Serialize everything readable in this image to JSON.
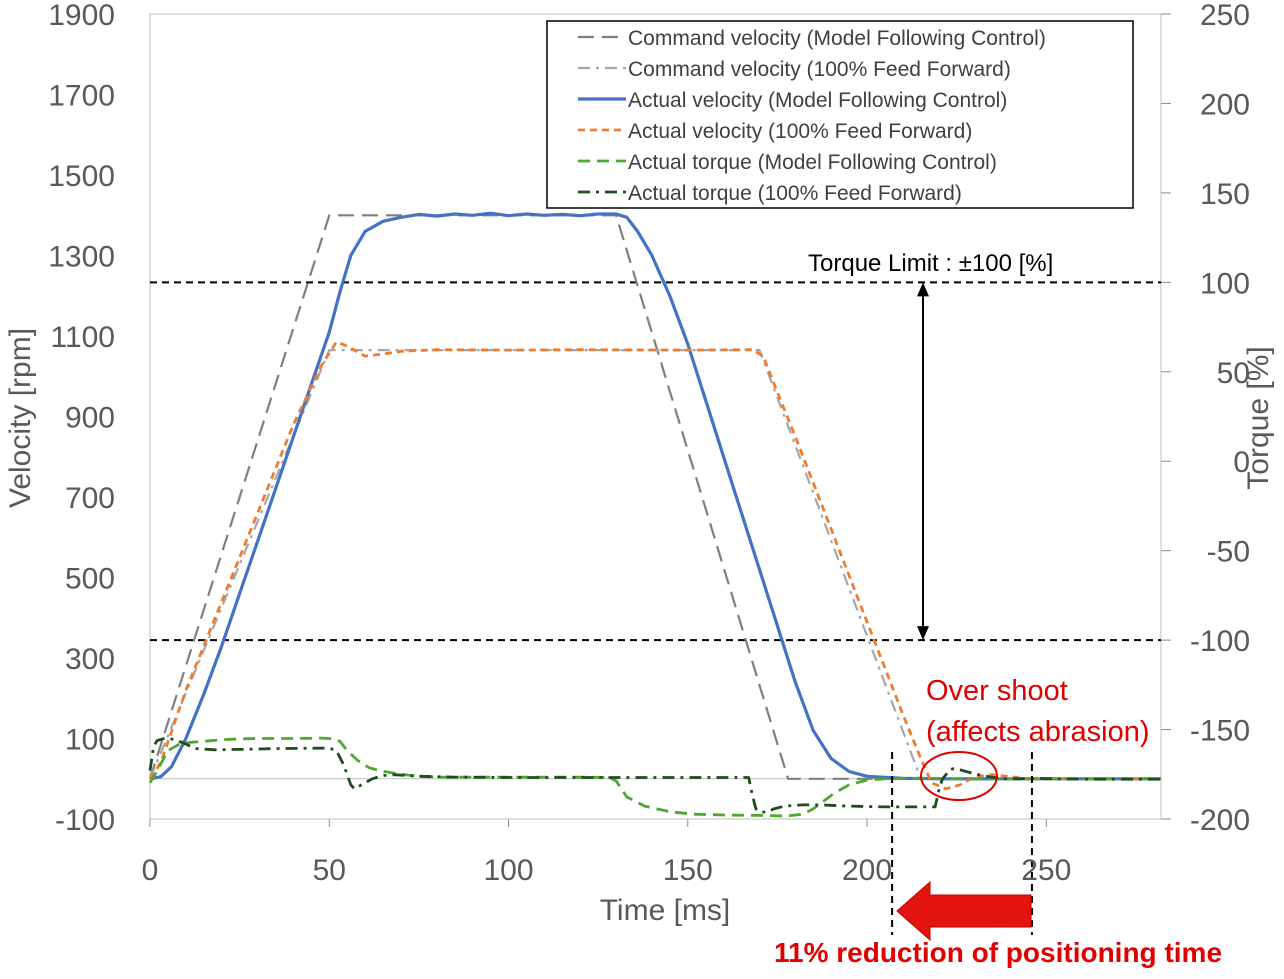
{
  "chart_data": {
    "type": "line",
    "x_axis": {
      "label": "Time [ms]",
      "lim": [
        0,
        282
      ],
      "ticks": [
        0,
        50,
        100,
        150,
        200,
        250
      ]
    },
    "y_axis_left": {
      "label": "Velocity [rpm]",
      "lim": [
        -100,
        1900
      ],
      "ticks": [
        -100,
        100,
        300,
        500,
        700,
        900,
        1100,
        1300,
        1500,
        1700,
        1900
      ]
    },
    "y_axis_right": {
      "label": "Torque [%]",
      "lim": [
        -200,
        250
      ],
      "ticks": [
        -200,
        -150,
        -100,
        -50,
        0,
        50,
        100,
        150,
        200,
        250
      ]
    },
    "legend_position": "top-right",
    "series": [
      {
        "name": "Command velocity (Model Following Control)",
        "axis": "left",
        "color": "#7f7f7f",
        "style": "longdash",
        "width": 2.2,
        "points": [
          [
            0,
            0
          ],
          [
            50,
            1400
          ],
          [
            130,
            1400
          ],
          [
            178,
            0
          ],
          [
            282,
            0
          ]
        ]
      },
      {
        "name": "Command velocity (100% Feed Forward)",
        "axis": "left",
        "color": "#a6a6a6",
        "style": "dashdot",
        "width": 2.2,
        "points": [
          [
            0,
            0
          ],
          [
            50,
            1065
          ],
          [
            170,
            1065
          ],
          [
            215,
            0
          ],
          [
            282,
            0
          ]
        ]
      },
      {
        "name": "Actual velocity (Model Following Control)",
        "axis": "left",
        "color": "#4472c4",
        "style": "solid",
        "width": 3.2,
        "points": [
          [
            0,
            0
          ],
          [
            3,
            5
          ],
          [
            6,
            30
          ],
          [
            10,
            100
          ],
          [
            15,
            210
          ],
          [
            20,
            330
          ],
          [
            25,
            460
          ],
          [
            30,
            590
          ],
          [
            35,
            720
          ],
          [
            40,
            850
          ],
          [
            45,
            980
          ],
          [
            50,
            1110
          ],
          [
            53,
            1210
          ],
          [
            56,
            1300
          ],
          [
            60,
            1360
          ],
          [
            65,
            1385
          ],
          [
            70,
            1395
          ],
          [
            75,
            1402
          ],
          [
            80,
            1398
          ],
          [
            85,
            1403
          ],
          [
            90,
            1400
          ],
          [
            95,
            1405
          ],
          [
            100,
            1399
          ],
          [
            105,
            1403
          ],
          [
            110,
            1400
          ],
          [
            115,
            1402
          ],
          [
            120,
            1399
          ],
          [
            125,
            1403
          ],
          [
            130,
            1403
          ],
          [
            133,
            1395
          ],
          [
            136,
            1360
          ],
          [
            140,
            1300
          ],
          [
            145,
            1200
          ],
          [
            150,
            1080
          ],
          [
            155,
            940
          ],
          [
            160,
            800
          ],
          [
            165,
            660
          ],
          [
            170,
            520
          ],
          [
            175,
            380
          ],
          [
            180,
            240
          ],
          [
            185,
            120
          ],
          [
            190,
            50
          ],
          [
            195,
            18
          ],
          [
            200,
            6
          ],
          [
            210,
            1
          ],
          [
            220,
            0
          ],
          [
            282,
            0
          ]
        ]
      },
      {
        "name": "Actual velocity (100% Feed Forward)",
        "axis": "left",
        "color": "#ed7d31",
        "style": "shortdash",
        "width": 2.8,
        "points": [
          [
            0,
            0
          ],
          [
            3,
            40
          ],
          [
            10,
            220
          ],
          [
            20,
            440
          ],
          [
            30,
            660
          ],
          [
            40,
            880
          ],
          [
            48,
            1030
          ],
          [
            52,
            1085
          ],
          [
            55,
            1075
          ],
          [
            60,
            1050
          ],
          [
            65,
            1055
          ],
          [
            70,
            1062
          ],
          [
            80,
            1066
          ],
          [
            100,
            1065
          ],
          [
            120,
            1066
          ],
          [
            150,
            1065
          ],
          [
            168,
            1066
          ],
          [
            171,
            1050
          ],
          [
            175,
            960
          ],
          [
            180,
            850
          ],
          [
            190,
            620
          ],
          [
            200,
            390
          ],
          [
            210,
            160
          ],
          [
            215,
            50
          ],
          [
            218,
            -10
          ],
          [
            222,
            -25
          ],
          [
            226,
            -15
          ],
          [
            230,
            5
          ],
          [
            235,
            10
          ],
          [
            240,
            5
          ],
          [
            245,
            0
          ],
          [
            282,
            0
          ]
        ]
      },
      {
        "name": "Actual torque (Model Following Control)",
        "axis": "left",
        "color": "#4ea72e",
        "style": "dash",
        "width": 2.8,
        "points": [
          [
            0,
            -10
          ],
          [
            2,
            20
          ],
          [
            5,
            70
          ],
          [
            8,
            85
          ],
          [
            11,
            90
          ],
          [
            15,
            93
          ],
          [
            20,
            97
          ],
          [
            25,
            99
          ],
          [
            30,
            100
          ],
          [
            40,
            100
          ],
          [
            48,
            101
          ],
          [
            51,
            99
          ],
          [
            53,
            93
          ],
          [
            55,
            70
          ],
          [
            58,
            45
          ],
          [
            61,
            28
          ],
          [
            64,
            20
          ],
          [
            68,
            14
          ],
          [
            72,
            9
          ],
          [
            76,
            6
          ],
          [
            80,
            4
          ],
          [
            90,
            4
          ],
          [
            100,
            4
          ],
          [
            110,
            4
          ],
          [
            120,
            4
          ],
          [
            128,
            3
          ],
          [
            130,
            -5
          ],
          [
            133,
            -45
          ],
          [
            138,
            -68
          ],
          [
            145,
            -82
          ],
          [
            152,
            -88
          ],
          [
            160,
            -90
          ],
          [
            170,
            -91
          ],
          [
            175,
            -92
          ],
          [
            178,
            -92
          ],
          [
            182,
            -88
          ],
          [
            185,
            -75
          ],
          [
            188,
            -55
          ],
          [
            191,
            -35
          ],
          [
            195,
            -15
          ],
          [
            200,
            -3
          ],
          [
            205,
            0
          ],
          [
            215,
            1
          ],
          [
            225,
            0
          ],
          [
            282,
            0
          ]
        ]
      },
      {
        "name": "Actual torque (100% Feed Forward)",
        "axis": "left",
        "color": "#1e4d1e",
        "style": "dashdot",
        "width": 2.8,
        "points": [
          [
            0,
            20
          ],
          [
            1,
            80
          ],
          [
            2,
            95
          ],
          [
            4,
            100
          ],
          [
            6,
            99
          ],
          [
            9,
            90
          ],
          [
            11,
            82
          ],
          [
            13,
            75
          ],
          [
            18,
            72
          ],
          [
            25,
            73
          ],
          [
            35,
            75
          ],
          [
            45,
            76
          ],
          [
            50,
            76
          ],
          [
            52,
            70
          ],
          [
            54,
            35
          ],
          [
            56,
            -15
          ],
          [
            57,
            -25
          ],
          [
            59,
            -15
          ],
          [
            62,
            0
          ],
          [
            65,
            8
          ],
          [
            68,
            10
          ],
          [
            75,
            6
          ],
          [
            85,
            4
          ],
          [
            100,
            3
          ],
          [
            120,
            3
          ],
          [
            140,
            3
          ],
          [
            155,
            3
          ],
          [
            167,
            3
          ],
          [
            168,
            -40
          ],
          [
            169,
            -75
          ],
          [
            170,
            -82
          ],
          [
            172,
            -83
          ],
          [
            174,
            -75
          ],
          [
            177,
            -68
          ],
          [
            182,
            -65
          ],
          [
            187,
            -65
          ],
          [
            195,
            -68
          ],
          [
            205,
            -70
          ],
          [
            213,
            -70
          ],
          [
            219,
            -70
          ],
          [
            220,
            -30
          ],
          [
            221,
            -1
          ],
          [
            222,
            10
          ],
          [
            223,
            22
          ],
          [
            224,
            25
          ],
          [
            226,
            22
          ],
          [
            230,
            12
          ],
          [
            234,
            5
          ],
          [
            238,
            0
          ],
          [
            242,
            0
          ],
          [
            247,
            1
          ],
          [
            252,
            0
          ],
          [
            260,
            -1
          ],
          [
            270,
            -1
          ],
          [
            282,
            -1
          ]
        ]
      }
    ],
    "annotations": {
      "torque_limit_label": "Torque  Limit : ±100 [%]",
      "torque_limit_value": 100,
      "overshoot_line1": "Over shoot",
      "overshoot_line2": "(affects abrasion)",
      "reduction_text": "11% reduction of positioning time",
      "positioning_start_ms": 207,
      "positioning_end_ms": 246
    },
    "colors": {
      "annotation_red": "#e00000",
      "arrow_fill": "#e3140d",
      "axis_text": "#595959"
    }
  }
}
